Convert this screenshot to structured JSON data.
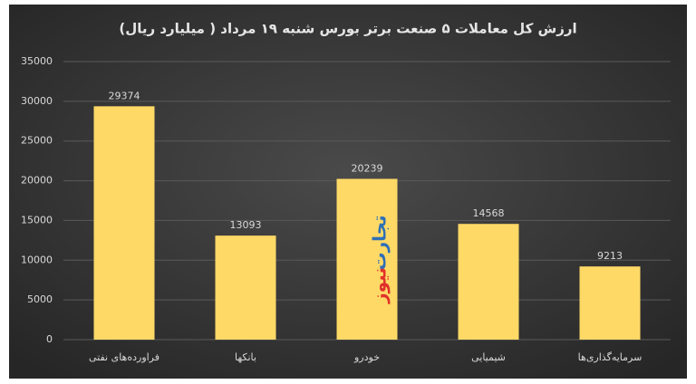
{
  "chart_data": {
    "type": "bar",
    "title": "ارزش کل معاملات ۵ صنعت برتر بورس شنبه ۱۹ مرداد ( میلیارد ریال)",
    "categories": [
      "فراورده‌های نفتی",
      "بانکها",
      "خودرو",
      "شیمیایی",
      "سرمایه‌گذاری‌ها"
    ],
    "values": [
      29374,
      13093,
      20239,
      14568,
      9213
    ],
    "color": "#ffd966",
    "ylim": [
      0,
      35000
    ],
    "yticks": [
      0,
      5000,
      10000,
      15000,
      20000,
      25000,
      30000,
      35000
    ],
    "grid": true,
    "watermark": [
      {
        "text": "تجارت",
        "color": "#2e6fb5"
      },
      {
        "text": "نیوز",
        "color": "#e0312b"
      }
    ]
  }
}
